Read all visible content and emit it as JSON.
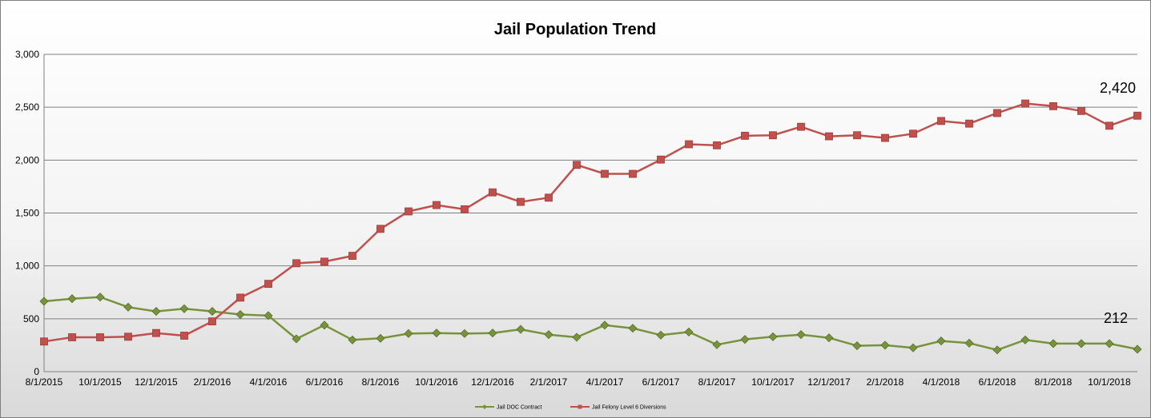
{
  "chart_data": {
    "type": "line",
    "title": "Jail Population Trend",
    "xlabel": "",
    "ylabel": "",
    "ylim": [
      0,
      3000
    ],
    "y_ticks": [
      "0",
      "500",
      "1,000",
      "1,500",
      "2,000",
      "2,500",
      "3,000"
    ],
    "y_tick_values": [
      0,
      500,
      1000,
      1500,
      2000,
      2500,
      3000
    ],
    "x_tick_labels": [
      "8/1/2015",
      "10/1/2015",
      "12/1/2015",
      "2/1/2016",
      "4/1/2016",
      "6/1/2016",
      "8/1/2016",
      "10/1/2016",
      "12/1/2016",
      "2/1/2017",
      "4/1/2017",
      "6/1/2017",
      "8/1/2017",
      "10/1/2017",
      "12/1/2017",
      "2/1/2018",
      "4/1/2018",
      "6/1/2018",
      "8/1/2018",
      "10/1/2018"
    ],
    "x": [
      "8/1/2015",
      "9/1/2015",
      "10/1/2015",
      "11/1/2015",
      "12/1/2015",
      "1/1/2016",
      "2/1/2016",
      "3/1/2016",
      "4/1/2016",
      "5/1/2016",
      "6/1/2016",
      "7/1/2016",
      "8/1/2016",
      "9/1/2016",
      "10/1/2016",
      "11/1/2016",
      "12/1/2016",
      "1/1/2017",
      "2/1/2017",
      "3/1/2017",
      "4/1/2017",
      "5/1/2017",
      "6/1/2017",
      "7/1/2017",
      "8/1/2017",
      "9/1/2017",
      "10/1/2017",
      "11/1/2017",
      "12/1/2017",
      "1/1/2018",
      "2/1/2018",
      "3/1/2018",
      "4/1/2018",
      "5/1/2018",
      "6/1/2018",
      "7/1/2018",
      "8/1/2018",
      "9/1/2018",
      "10/1/2018",
      "11/1/2018"
    ],
    "grid": true,
    "legend_position": "bottom",
    "series": [
      {
        "name": "Jail DOC Contract",
        "color": "#77933c",
        "marker": "diamond",
        "values": [
          665,
          690,
          705,
          610,
          570,
          595,
          570,
          540,
          530,
          310,
          440,
          300,
          315,
          360,
          365,
          360,
          365,
          400,
          350,
          325,
          440,
          410,
          345,
          375,
          255,
          305,
          330,
          350,
          320,
          245,
          250,
          225,
          290,
          270,
          205,
          300,
          265,
          265,
          265,
          212
        ]
      },
      {
        "name": "Jail Felony Level 6 Diversions",
        "color": "#c0504d",
        "marker": "square",
        "values": [
          285,
          325,
          325,
          330,
          365,
          340,
          475,
          700,
          830,
          1025,
          1040,
          1095,
          1350,
          1515,
          1575,
          1535,
          1695,
          1605,
          1645,
          1955,
          1870,
          1870,
          2005,
          2150,
          2140,
          2230,
          2235,
          2315,
          2225,
          2235,
          2210,
          2250,
          2370,
          2345,
          2445,
          2535,
          2510,
          2465,
          2325,
          2420
        ]
      }
    ],
    "annotations": [
      "2,420",
      "212"
    ]
  }
}
